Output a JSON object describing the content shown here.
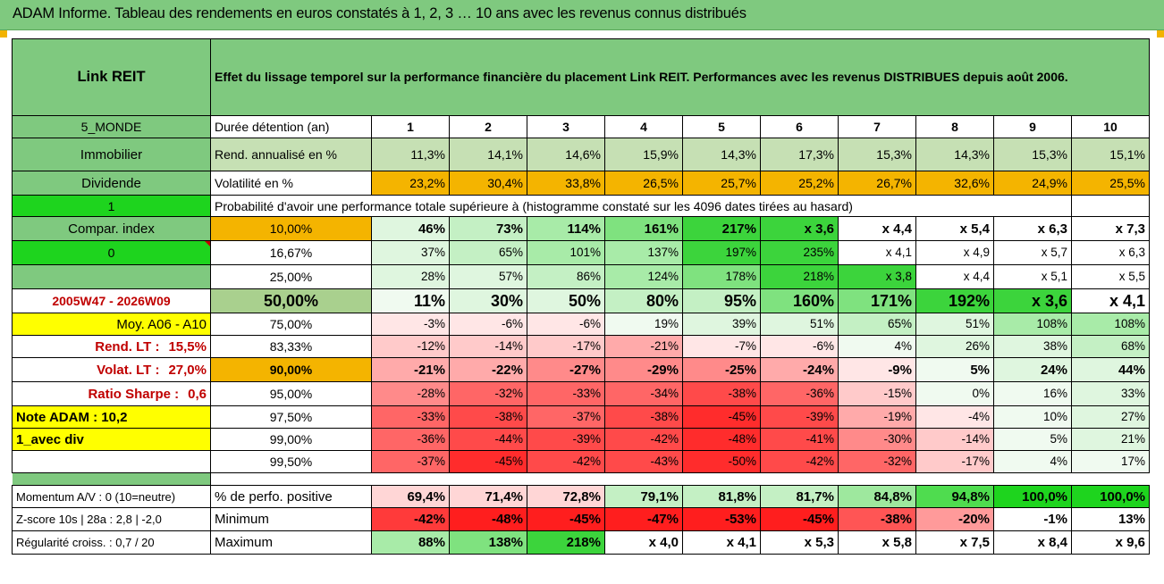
{
  "page_title": "ADAM Informe. Tableau des rendements en euros constatés à 1, 2, 3 … 10 ans avec les revenus connus distribués",
  "header": {
    "name": "Link REIT",
    "description": "Effet du lissage temporel sur la performance financière du placement Link REIT. Performances avec les revenus DISTRIBUES depuis août 2006."
  },
  "colors": {
    "accent_green": "#7fc97f",
    "orange": "#f4b400",
    "bright_green": "#1ed41e",
    "yellow": "#ffff00"
  },
  "years_row": {
    "left": "5_MONDE",
    "label": "Durée détention (an)",
    "values": [
      "1",
      "2",
      "3",
      "4",
      "5",
      "6",
      "7",
      "8",
      "9",
      "10"
    ]
  },
  "return_row": {
    "left": "Immobilier",
    "label": "Rend. annualisé en %",
    "values": [
      "11,3%",
      "14,1%",
      "14,6%",
      "15,9%",
      "14,3%",
      "17,3%",
      "15,3%",
      "14,3%",
      "15,3%",
      "15,1%"
    ]
  },
  "vol_row": {
    "left": "Dividende",
    "label": "Volatilité en %",
    "values": [
      "23,2%",
      "30,4%",
      "33,8%",
      "26,5%",
      "25,7%",
      "25,2%",
      "26,7%",
      "32,6%",
      "24,9%",
      "25,5%"
    ]
  },
  "prob_row": {
    "left": "1",
    "text": "Probabilité d'avoir une performance totale supérieure à (histogramme constaté sur les 4096 dates tirées au hasard)"
  },
  "side_labels": {
    "compar_index": "Compar. index",
    "zero": "0",
    "blank": "",
    "period": "2005W47 - 2026W09",
    "moy": "Moy. A06 - A10",
    "rend_lt_label": "Rend. LT :",
    "rend_lt_value": "15,5%",
    "volat_lt_label": "Volat. LT :",
    "volat_lt_value": "27,0%",
    "sharpe_label": "Ratio Sharpe :",
    "sharpe_value": "0,6",
    "note": "Note ADAM : 10,2",
    "avec_div": "1_avec div"
  },
  "quantiles": [
    {
      "pct": "10,00%",
      "values": [
        "46%",
        "73%",
        "114%",
        "161%",
        "217%",
        "x 3,6",
        "x 4,4",
        "x 5,4",
        "x 6,3",
        "x 7,3"
      ]
    },
    {
      "pct": "16,67%",
      "values": [
        "37%",
        "65%",
        "101%",
        "137%",
        "197%",
        "235%",
        "x 4,1",
        "x 4,9",
        "x 5,7",
        "x 6,3"
      ]
    },
    {
      "pct": "25,00%",
      "values": [
        "28%",
        "57%",
        "86%",
        "124%",
        "178%",
        "218%",
        "x 3,8",
        "x 4,4",
        "x 5,1",
        "x 5,5"
      ]
    },
    {
      "pct": "50,00%",
      "values": [
        "11%",
        "30%",
        "50%",
        "80%",
        "95%",
        "160%",
        "171%",
        "192%",
        "x 3,6",
        "x 4,1"
      ]
    },
    {
      "pct": "75,00%",
      "values": [
        "-3%",
        "-6%",
        "-6%",
        "19%",
        "39%",
        "51%",
        "65%",
        "51%",
        "108%",
        "108%"
      ]
    },
    {
      "pct": "83,33%",
      "values": [
        "-12%",
        "-14%",
        "-17%",
        "-21%",
        "-7%",
        "-6%",
        "4%",
        "26%",
        "38%",
        "68%"
      ]
    },
    {
      "pct": "90,00%",
      "values": [
        "-21%",
        "-22%",
        "-27%",
        "-29%",
        "-25%",
        "-24%",
        "-9%",
        "5%",
        "24%",
        "44%"
      ]
    },
    {
      "pct": "95,00%",
      "values": [
        "-28%",
        "-32%",
        "-33%",
        "-34%",
        "-38%",
        "-36%",
        "-15%",
        "0%",
        "16%",
        "33%"
      ]
    },
    {
      "pct": "97,50%",
      "values": [
        "-33%",
        "-38%",
        "-37%",
        "-38%",
        "-45%",
        "-39%",
        "-19%",
        "-4%",
        "10%",
        "27%"
      ]
    },
    {
      "pct": "99,00%",
      "values": [
        "-36%",
        "-44%",
        "-39%",
        "-42%",
        "-48%",
        "-41%",
        "-30%",
        "-14%",
        "5%",
        "21%"
      ]
    },
    {
      "pct": "99,50%",
      "values": [
        "-37%",
        "-45%",
        "-42%",
        "-43%",
        "-50%",
        "-42%",
        "-32%",
        "-17%",
        "4%",
        "17%"
      ]
    }
  ],
  "bottom": [
    {
      "left": "Momentum A/V : 0 (10=neutre)",
      "label": "% de perfo. positive",
      "values": [
        "69,4%",
        "71,4%",
        "72,8%",
        "79,1%",
        "81,8%",
        "81,7%",
        "84,8%",
        "94,8%",
        "100,0%",
        "100,0%"
      ]
    },
    {
      "left": "Z-score 10s | 28a : 2,8 | -2,0",
      "label": "Minimum",
      "values": [
        "-42%",
        "-48%",
        "-45%",
        "-47%",
        "-53%",
        "-45%",
        "-38%",
        "-20%",
        "-1%",
        "13%"
      ]
    },
    {
      "left": "Régularité croiss. : 0,7 / 20",
      "label": "Maximum",
      "values": [
        "88%",
        "138%",
        "218%",
        "x 4,0",
        "x 4,1",
        "x 5,3",
        "x 5,8",
        "x 7,5",
        "x 8,4",
        "x 9,6"
      ]
    }
  ]
}
